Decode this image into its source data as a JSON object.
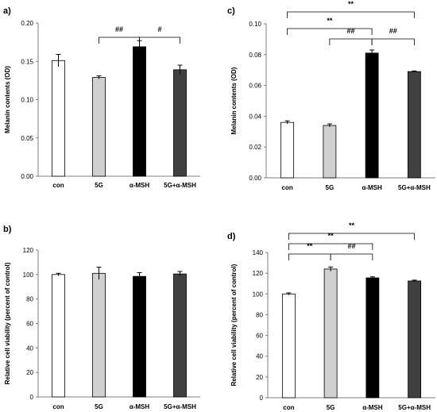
{
  "chart_data": [
    {
      "panel": "a)",
      "type": "bar",
      "categories": [
        "con",
        "5G",
        "α-MSH",
        "5G+α-MSH"
      ],
      "values": [
        0.151,
        0.129,
        0.169,
        0.139
      ],
      "errors": [
        0.008,
        0.002,
        0.008,
        0.006
      ],
      "colors": [
        "#ffffff",
        "#d0d0d0",
        "#000000",
        "#404040"
      ],
      "ylabel": "Melanin contents (OD)",
      "ylim": [
        0,
        0.2
      ],
      "yticks": [
        "0.00",
        "0.05",
        "0.10",
        "0.15",
        "0.20"
      ],
      "brackets": [
        {
          "from": 1,
          "to": 2,
          "label": "##"
        },
        {
          "from": 2,
          "to": 3,
          "label": "#"
        }
      ]
    },
    {
      "panel": "c)",
      "type": "bar",
      "categories": [
        "con",
        "5G",
        "α-MSH",
        "5G+α-MSH"
      ],
      "values": [
        0.036,
        0.034,
        0.081,
        0.069
      ],
      "errors": [
        0.001,
        0.001,
        0.002,
        0.0004
      ],
      "colors": [
        "#ffffff",
        "#d0d0d0",
        "#000000",
        "#404040"
      ],
      "ylabel": "Melanin contents (OD)",
      "ylim": [
        0,
        0.1
      ],
      "yticks": [
        "0.00",
        "0.02",
        "0.04",
        "0.06",
        "0.08",
        "0.10"
      ],
      "brackets": [
        {
          "from": 0,
          "to": 3,
          "label": "**"
        },
        {
          "from": 0,
          "to": 2,
          "label": "**"
        },
        {
          "from": 1,
          "to": 2,
          "label": "##"
        },
        {
          "from": 2,
          "to": 3,
          "label": "##"
        }
      ]
    },
    {
      "panel": "b)",
      "type": "bar",
      "categories": [
        "con",
        "5G",
        "α-MSH",
        "5G+α-MSH"
      ],
      "values": [
        100,
        101,
        98.5,
        100.5
      ],
      "errors": [
        1,
        5,
        3,
        2
      ],
      "colors": [
        "#ffffff",
        "#d0d0d0",
        "#000000",
        "#404040"
      ],
      "ylabel": "Relative cell viability (percent of control)",
      "ylim": [
        0,
        120
      ],
      "yticks": [
        "0",
        "20",
        "40",
        "60",
        "80",
        "100",
        "120"
      ],
      "brackets": []
    },
    {
      "panel": "d)",
      "type": "bar",
      "categories": [
        "con",
        "5G",
        "α-MSH",
        "5G+α-MSH"
      ],
      "values": [
        100,
        124,
        115.5,
        112.5
      ],
      "errors": [
        1,
        2,
        1,
        0.8
      ],
      "colors": [
        "#ffffff",
        "#d0d0d0",
        "#000000",
        "#404040"
      ],
      "ylabel": "Relative cell viability (percent of control)",
      "ylim": [
        0,
        140
      ],
      "yticks": [
        "0",
        "20",
        "40",
        "60",
        "80",
        "100",
        "120",
        "140"
      ],
      "brackets": [
        {
          "from": 0,
          "to": 3,
          "label": "**"
        },
        {
          "from": 0,
          "to": 2,
          "label": "**"
        },
        {
          "from": 0,
          "to": 1,
          "label": "**"
        },
        {
          "from": 1,
          "to": 2,
          "label": "##"
        }
      ]
    }
  ]
}
